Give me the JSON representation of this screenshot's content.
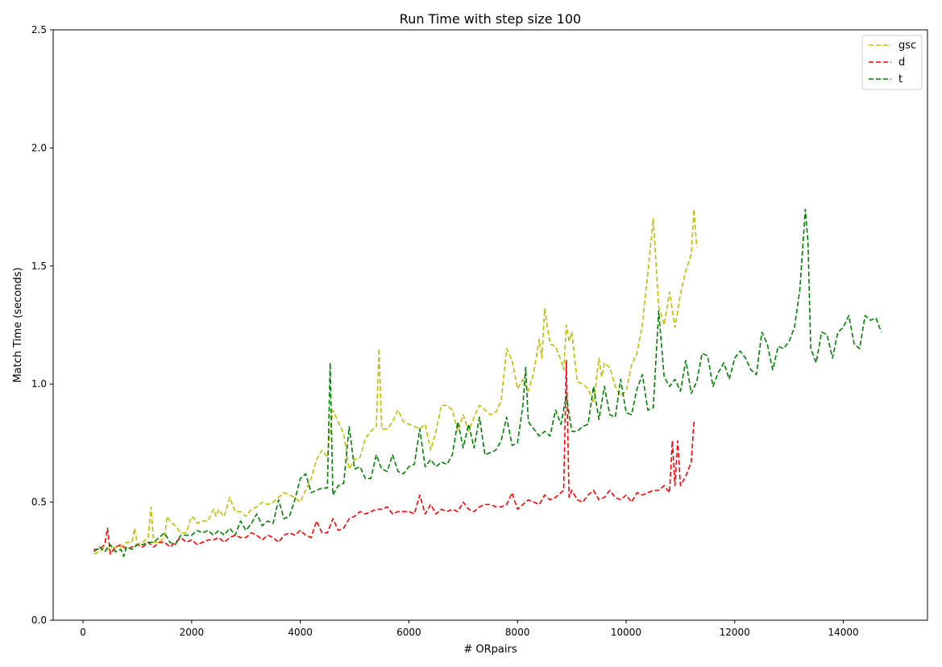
{
  "chart_data": {
    "type": "line",
    "title": "Run Time with step size 100",
    "xlabel": "# ORpairs",
    "ylabel": "Match Time (seconds)",
    "xlim": [
      -550,
      15550
    ],
    "ylim": [
      0.0,
      2.5
    ],
    "xticks": [
      0,
      2000,
      4000,
      6000,
      8000,
      10000,
      12000,
      14000
    ],
    "yticks": [
      0.0,
      0.5,
      1.0,
      1.5,
      2.0,
      2.5
    ],
    "xtick_labels": [
      "0",
      "2000",
      "4000",
      "6000",
      "8000",
      "10000",
      "12000",
      "14000"
    ],
    "ytick_labels": [
      "0.0",
      "0.5",
      "1.0",
      "1.5",
      "2.0",
      "2.5"
    ],
    "grid": false,
    "legend_position": "top-right",
    "series": [
      {
        "name": "gsc",
        "color": "#bfbf00",
        "dash": "dashed",
        "x": [
          200,
          300,
          400,
          500,
          600,
          700,
          800,
          900,
          950,
          1000,
          1100,
          1200,
          1250,
          1300,
          1400,
          1500,
          1550,
          1600,
          1700,
          1800,
          1900,
          2000,
          2050,
          2100,
          2200,
          2300,
          2400,
          2450,
          2500,
          2550,
          2600,
          2700,
          2800,
          2900,
          3000,
          3100,
          3200,
          3300,
          3400,
          3500,
          3600,
          3700,
          3800,
          3900,
          4000,
          4100,
          4200,
          4300,
          4400,
          4500,
          4550,
          4600,
          4700,
          4800,
          4900,
          5000,
          5100,
          5200,
          5300,
          5400,
          5450,
          5500,
          5600,
          5700,
          5800,
          5900,
          6000,
          6100,
          6200,
          6300,
          6400,
          6500,
          6600,
          6700,
          6800,
          6900,
          7000,
          7100,
          7200,
          7300,
          7400,
          7500,
          7600,
          7700,
          7800,
          7900,
          8000,
          8100,
          8200,
          8300,
          8400,
          8450,
          8500,
          8600,
          8700,
          8800,
          8850,
          8900,
          8950,
          9000,
          9100,
          9200,
          9300,
          9400,
          9500,
          9550,
          9600,
          9700,
          9800,
          9900,
          10000,
          10100,
          10200,
          10300,
          10400,
          10500,
          10550,
          10600,
          10700,
          10800,
          10900,
          11000,
          11100,
          11200,
          11250,
          11300
        ],
        "values": [
          0.28,
          0.29,
          0.31,
          0.3,
          0.31,
          0.31,
          0.33,
          0.33,
          0.39,
          0.32,
          0.33,
          0.35,
          0.48,
          0.33,
          0.33,
          0.35,
          0.44,
          0.42,
          0.4,
          0.37,
          0.37,
          0.44,
          0.43,
          0.41,
          0.42,
          0.42,
          0.47,
          0.44,
          0.47,
          0.45,
          0.44,
          0.52,
          0.46,
          0.46,
          0.44,
          0.47,
          0.48,
          0.5,
          0.49,
          0.5,
          0.52,
          0.54,
          0.53,
          0.52,
          0.5,
          0.55,
          0.6,
          0.68,
          0.72,
          0.69,
          0.8,
          0.89,
          0.84,
          0.79,
          0.64,
          0.68,
          0.69,
          0.77,
          0.8,
          0.82,
          1.15,
          0.81,
          0.81,
          0.84,
          0.89,
          0.84,
          0.83,
          0.82,
          0.81,
          0.83,
          0.72,
          0.8,
          0.91,
          0.91,
          0.89,
          0.8,
          0.87,
          0.8,
          0.86,
          0.91,
          0.89,
          0.87,
          0.88,
          0.93,
          1.15,
          1.1,
          0.98,
          1.02,
          0.97,
          1.05,
          1.19,
          1.11,
          1.32,
          1.17,
          1.16,
          1.1,
          1.06,
          1.25,
          1.18,
          1.22,
          1.01,
          1.0,
          0.98,
          0.92,
          1.11,
          1.03,
          1.09,
          1.07,
          0.99,
          0.95,
          0.97,
          1.08,
          1.13,
          1.25,
          1.47,
          1.7,
          1.52,
          1.33,
          1.25,
          1.39,
          1.24,
          1.38,
          1.48,
          1.55,
          1.74,
          1.58
        ]
      },
      {
        "name": "d",
        "color": "#ff0000",
        "dash": "dashed",
        "x": [
          200,
          300,
          400,
          450,
          500,
          600,
          700,
          800,
          900,
          1000,
          1100,
          1200,
          1300,
          1400,
          1500,
          1600,
          1700,
          1800,
          1900,
          2000,
          2100,
          2200,
          2300,
          2400,
          2500,
          2600,
          2700,
          2800,
          2900,
          3000,
          3100,
          3200,
          3300,
          3400,
          3500,
          3600,
          3700,
          3800,
          3900,
          4000,
          4100,
          4200,
          4300,
          4400,
          4500,
          4600,
          4700,
          4800,
          4900,
          5000,
          5100,
          5200,
          5300,
          5400,
          5500,
          5600,
          5700,
          5800,
          5900,
          6000,
          6100,
          6200,
          6300,
          6400,
          6500,
          6600,
          6700,
          6800,
          6900,
          7000,
          7100,
          7200,
          7300,
          7400,
          7500,
          7600,
          7700,
          7800,
          7900,
          8000,
          8100,
          8200,
          8300,
          8400,
          8500,
          8600,
          8700,
          8800,
          8850,
          8900,
          8950,
          9000,
          9100,
          9200,
          9300,
          9400,
          9500,
          9600,
          9700,
          9800,
          9900,
          10000,
          10100,
          10200,
          10300,
          10400,
          10500,
          10600,
          10700,
          10800,
          10850,
          10900,
          10950,
          11000,
          11100,
          11200,
          11250
        ],
        "values": [
          0.3,
          0.3,
          0.32,
          0.39,
          0.28,
          0.31,
          0.32,
          0.3,
          0.31,
          0.32,
          0.31,
          0.33,
          0.31,
          0.33,
          0.33,
          0.31,
          0.33,
          0.35,
          0.33,
          0.34,
          0.32,
          0.33,
          0.34,
          0.34,
          0.35,
          0.33,
          0.35,
          0.36,
          0.35,
          0.35,
          0.37,
          0.36,
          0.34,
          0.36,
          0.35,
          0.33,
          0.36,
          0.37,
          0.36,
          0.38,
          0.36,
          0.35,
          0.42,
          0.37,
          0.37,
          0.43,
          0.38,
          0.39,
          0.43,
          0.44,
          0.46,
          0.45,
          0.46,
          0.47,
          0.47,
          0.48,
          0.45,
          0.46,
          0.46,
          0.46,
          0.45,
          0.53,
          0.45,
          0.49,
          0.45,
          0.47,
          0.46,
          0.47,
          0.46,
          0.5,
          0.47,
          0.46,
          0.48,
          0.49,
          0.49,
          0.48,
          0.48,
          0.49,
          0.54,
          0.47,
          0.49,
          0.51,
          0.5,
          0.49,
          0.53,
          0.51,
          0.52,
          0.54,
          0.55,
          1.1,
          0.52,
          0.55,
          0.51,
          0.5,
          0.53,
          0.55,
          0.51,
          0.52,
          0.55,
          0.52,
          0.51,
          0.53,
          0.5,
          0.54,
          0.53,
          0.54,
          0.55,
          0.55,
          0.57,
          0.54,
          0.76,
          0.57,
          0.76,
          0.57,
          0.61,
          0.67,
          0.84
        ]
      },
      {
        "name": "t",
        "color": "#008000",
        "dash": "dashed",
        "x": [
          200,
          300,
          400,
          500,
          600,
          700,
          750,
          800,
          900,
          1000,
          1100,
          1200,
          1300,
          1400,
          1500,
          1600,
          1700,
          1800,
          1900,
          2000,
          2100,
          2200,
          2300,
          2400,
          2500,
          2600,
          2700,
          2800,
          2900,
          3000,
          3100,
          3200,
          3300,
          3400,
          3500,
          3600,
          3700,
          3800,
          3900,
          4000,
          4100,
          4200,
          4300,
          4400,
          4500,
          4550,
          4600,
          4700,
          4800,
          4900,
          5000,
          5100,
          5200,
          5300,
          5400,
          5500,
          5600,
          5700,
          5800,
          5900,
          6000,
          6100,
          6200,
          6300,
          6400,
          6500,
          6600,
          6700,
          6800,
          6900,
          7000,
          7100,
          7200,
          7300,
          7400,
          7500,
          7600,
          7700,
          7800,
          7900,
          8000,
          8100,
          8150,
          8200,
          8300,
          8400,
          8500,
          8600,
          8700,
          8800,
          8900,
          9000,
          9100,
          9200,
          9300,
          9400,
          9500,
          9600,
          9700,
          9800,
          9900,
          10000,
          10100,
          10200,
          10300,
          10400,
          10500,
          10600,
          10700,
          10800,
          10900,
          11000,
          11100,
          11200,
          11300,
          11400,
          11500,
          11600,
          11700,
          11800,
          11900,
          12000,
          12100,
          12200,
          12300,
          12400,
          12500,
          12600,
          12700,
          12800,
          12900,
          13000,
          13100,
          13200,
          13300,
          13350,
          13400,
          13500,
          13600,
          13700,
          13800,
          13900,
          14000,
          14100,
          14200,
          14300,
          14400,
          14500,
          14600,
          14700
        ],
        "values": [
          0.29,
          0.31,
          0.29,
          0.32,
          0.29,
          0.3,
          0.27,
          0.31,
          0.3,
          0.32,
          0.32,
          0.33,
          0.33,
          0.35,
          0.37,
          0.33,
          0.32,
          0.36,
          0.36,
          0.36,
          0.38,
          0.37,
          0.38,
          0.36,
          0.38,
          0.36,
          0.39,
          0.36,
          0.42,
          0.38,
          0.41,
          0.45,
          0.4,
          0.42,
          0.41,
          0.51,
          0.43,
          0.44,
          0.51,
          0.6,
          0.62,
          0.54,
          0.55,
          0.56,
          0.56,
          1.09,
          0.53,
          0.57,
          0.58,
          0.82,
          0.64,
          0.65,
          0.6,
          0.6,
          0.7,
          0.64,
          0.63,
          0.7,
          0.63,
          0.62,
          0.65,
          0.66,
          0.81,
          0.65,
          0.68,
          0.65,
          0.67,
          0.66,
          0.7,
          0.84,
          0.73,
          0.83,
          0.73,
          0.86,
          0.7,
          0.71,
          0.72,
          0.76,
          0.86,
          0.74,
          0.75,
          0.91,
          1.07,
          0.84,
          0.81,
          0.78,
          0.8,
          0.78,
          0.89,
          0.83,
          0.95,
          0.8,
          0.8,
          0.82,
          0.83,
          0.99,
          0.85,
          0.99,
          0.87,
          0.86,
          1.02,
          0.88,
          0.87,
          0.98,
          1.04,
          0.89,
          0.9,
          1.31,
          1.03,
          0.99,
          1.02,
          0.97,
          1.1,
          0.96,
          1.01,
          1.13,
          1.12,
          0.99,
          1.05,
          1.09,
          1.02,
          1.11,
          1.14,
          1.11,
          1.06,
          1.04,
          1.22,
          1.17,
          1.06,
          1.16,
          1.15,
          1.18,
          1.24,
          1.4,
          1.74,
          1.6,
          1.15,
          1.09,
          1.22,
          1.21,
          1.11,
          1.22,
          1.24,
          1.29,
          1.17,
          1.15,
          1.29,
          1.27,
          1.28,
          1.22
        ]
      }
    ]
  }
}
